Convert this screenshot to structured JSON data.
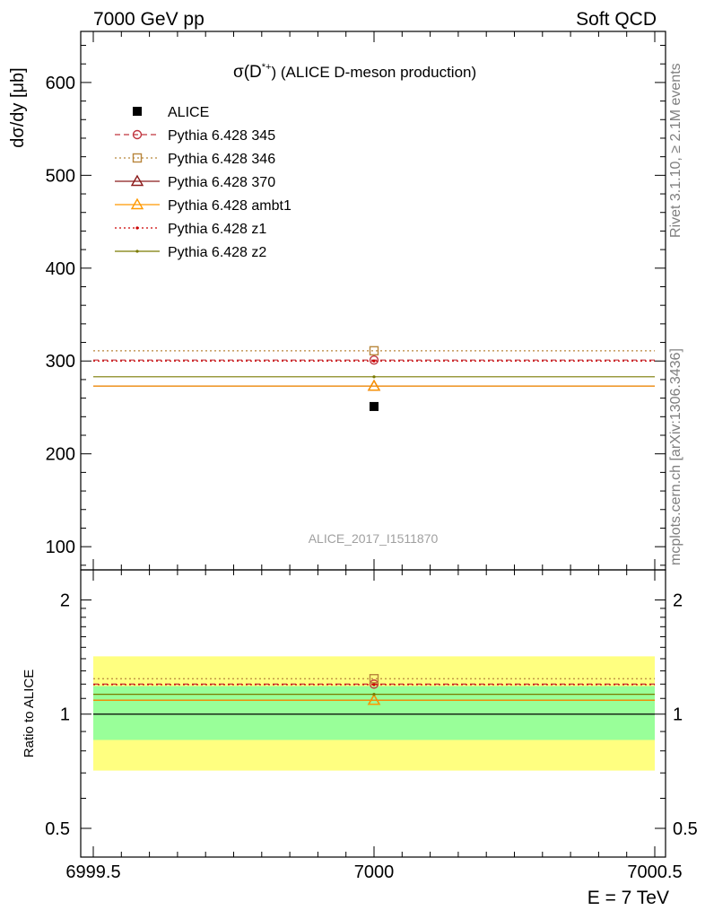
{
  "header": {
    "left": "7000 GeV pp",
    "right": "Soft QCD"
  },
  "side_labels": {
    "rivet": "Rivet 3.1.10, ≥ 2.1M events",
    "mcplots": "mcplots.cern.ch [arXiv:1306.3436]"
  },
  "watermark": "ALICE_2017_I1511870",
  "chart_data": [
    {
      "type": "scatter",
      "panel": "main",
      "title_prefix": "σ(D",
      "title_sup": "*+",
      "title_suffix": ") (ALICE D-meson production)",
      "ylabel": "dσ/dy [μb]",
      "ylim": [
        75,
        655
      ],
      "y_ticks": [
        100,
        200,
        300,
        400,
        500,
        600
      ],
      "x_range": [
        6999.5,
        7000.5
      ],
      "legend_position": "top-left",
      "series": [
        {
          "name": "ALICE",
          "x": [
            7000
          ],
          "y": [
            251
          ],
          "marker": "filled-square",
          "color": "#000000",
          "line": "none"
        },
        {
          "name": "Pythia 6.428 345",
          "x": [
            7000
          ],
          "y": [
            301
          ],
          "marker": "open-circle",
          "color": "#c0353f",
          "line": "dashed"
        },
        {
          "name": "Pythia 6.428 346",
          "x": [
            7000
          ],
          "y": [
            311
          ],
          "marker": "open-square",
          "color": "#b8863b",
          "line": "dotted"
        },
        {
          "name": "Pythia 6.428 370",
          "x": [
            7000
          ],
          "y": [
            273
          ],
          "marker": "open-triangle",
          "color": "#8b1a1a",
          "line": "solid"
        },
        {
          "name": "Pythia 6.428 ambt1",
          "x": [
            7000
          ],
          "y": [
            273
          ],
          "marker": "open-triangle",
          "color": "#ff9900",
          "line": "solid"
        },
        {
          "name": "Pythia 6.428 z1",
          "x": [
            7000
          ],
          "y": [
            300
          ],
          "marker": "dot",
          "color": "#cc0000",
          "line": "dotted"
        },
        {
          "name": "Pythia 6.428 z2",
          "x": [
            7000
          ],
          "y": [
            283
          ],
          "marker": "dot",
          "color": "#7a7a00",
          "line": "solid"
        }
      ]
    },
    {
      "type": "scatter",
      "panel": "ratio",
      "ylabel": "Ratio to ALICE",
      "yscale": "log",
      "ylim": [
        0.42,
        2.4
      ],
      "y_ticks": [
        0.5,
        1,
        2
      ],
      "xlabel": "E = 7 TeV",
      "x_ticks": [
        6999.5,
        7000,
        7000.5
      ],
      "x_range": [
        6999.5,
        7000.5
      ],
      "bands": [
        {
          "lo": 0.71,
          "hi": 1.42,
          "color": "#ffff80"
        },
        {
          "lo": 0.855,
          "hi": 1.185,
          "color": "#99ff99"
        }
      ],
      "series": [
        {
          "name": "Pythia 6.428 345",
          "y": [
            1.2
          ],
          "marker": "open-circle",
          "color": "#c0353f",
          "line": "dashed"
        },
        {
          "name": "Pythia 6.428 346",
          "y": [
            1.24
          ],
          "marker": "open-square",
          "color": "#b8863b",
          "line": "dotted"
        },
        {
          "name": "Pythia 6.428 370",
          "y": [
            1.088
          ],
          "marker": "open-triangle",
          "color": "#8b1a1a",
          "line": "solid"
        },
        {
          "name": "Pythia 6.428 ambt1",
          "y": [
            1.088
          ],
          "marker": "open-triangle",
          "color": "#ff9900",
          "line": "solid"
        },
        {
          "name": "Pythia 6.428 z1",
          "y": [
            1.196
          ],
          "marker": "dot",
          "color": "#cc0000",
          "line": "dotted"
        },
        {
          "name": "Pythia 6.428 z2",
          "y": [
            1.128
          ],
          "marker": "dot",
          "color": "#7a7a00",
          "line": "solid"
        }
      ]
    }
  ]
}
